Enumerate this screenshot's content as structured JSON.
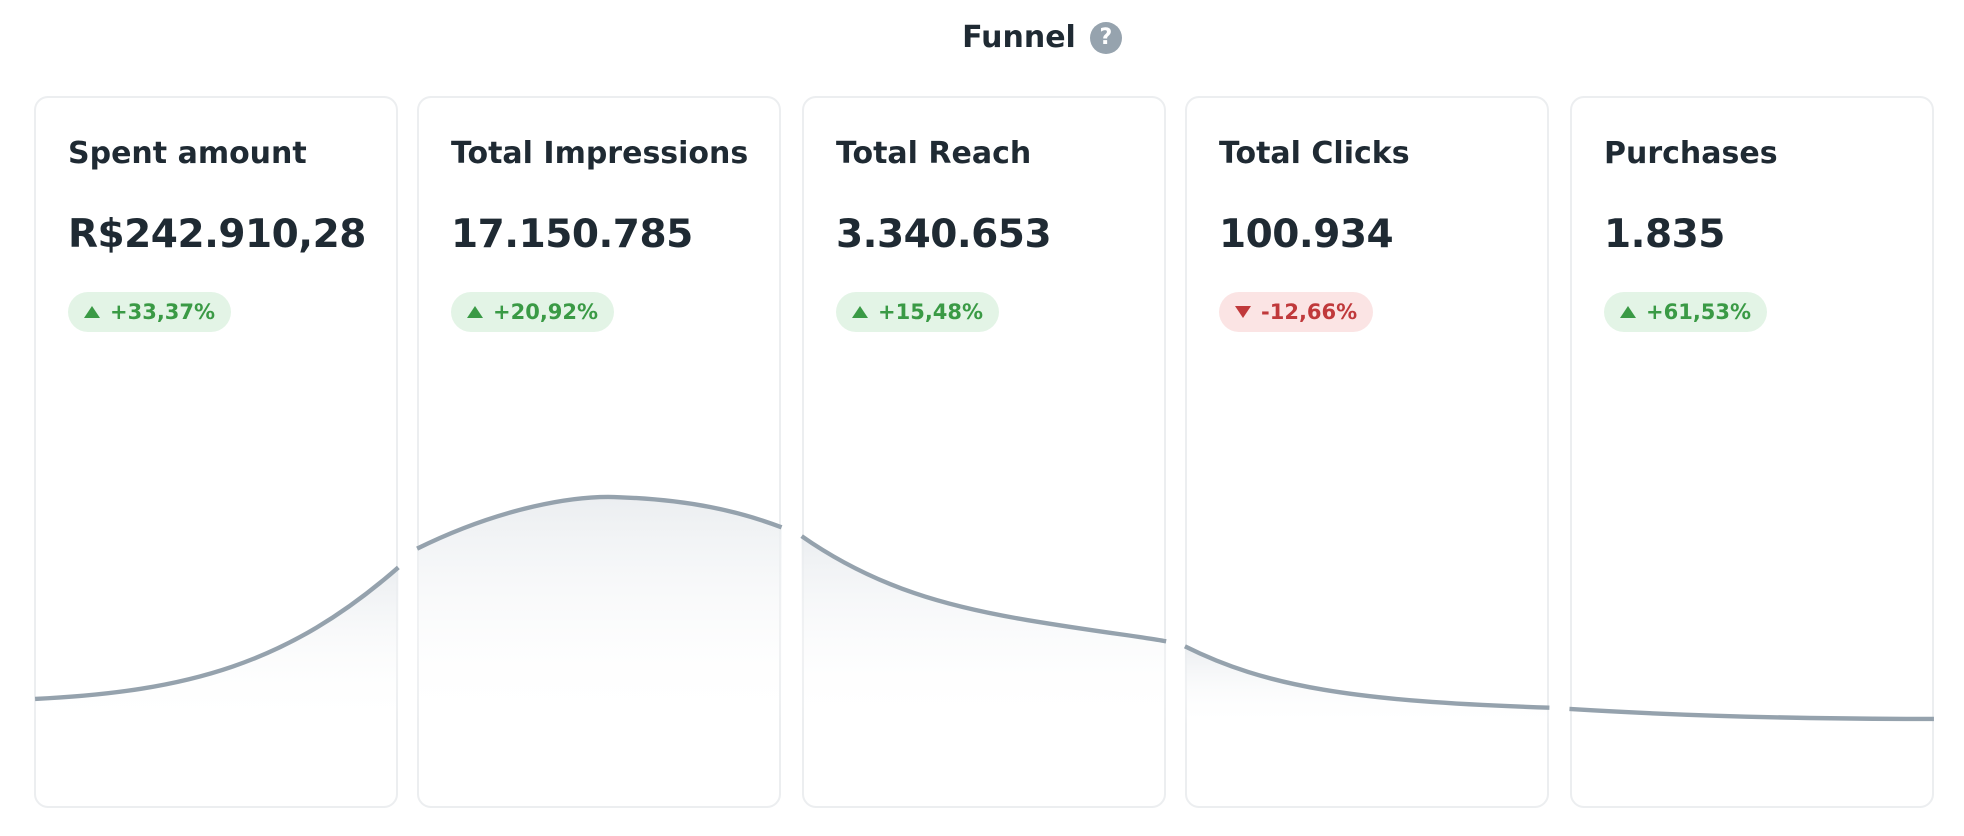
{
  "header": {
    "title": "Funnel"
  },
  "cards": [
    {
      "label": "Spent amount",
      "value": "R$242.910,28",
      "change": "+33,37%",
      "trend": "up"
    },
    {
      "label": "Total Impressions",
      "value": "17.150.785",
      "change": "+20,92%",
      "trend": "up"
    },
    {
      "label": "Total Reach",
      "value": "3.340.653",
      "change": "+15,48%",
      "trend": "up"
    },
    {
      "label": "Total Clicks",
      "value": "100.934",
      "change": "-12,66%",
      "trend": "down"
    },
    {
      "label": "Purchases",
      "value": "1.835",
      "change": "+61,53%",
      "trend": "up"
    }
  ]
}
